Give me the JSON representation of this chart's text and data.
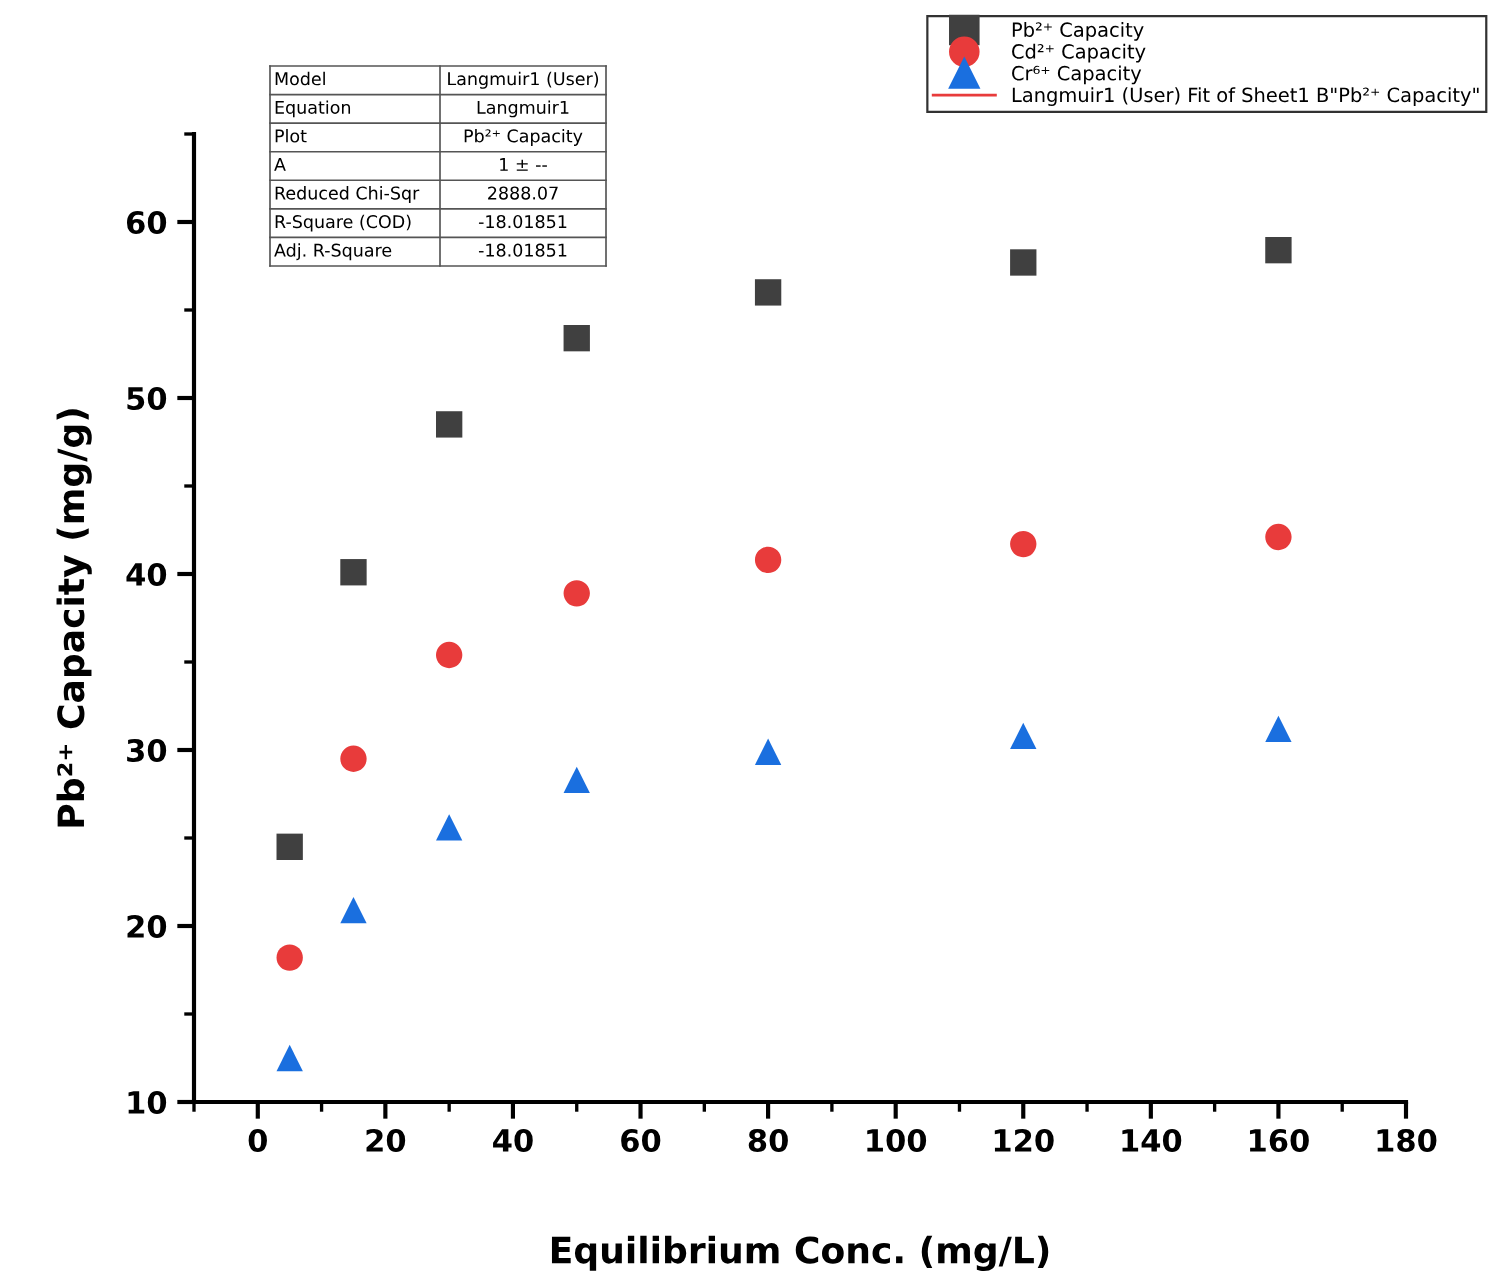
{
  "chart_data": {
    "type": "scatter",
    "xlabel": "Equilibrium Conc. (mg/L)",
    "ylabel": "Pb²⁺ Capacity (mg/g)",
    "x": [
      5,
      15,
      30,
      50,
      80,
      120,
      160
    ],
    "series": [
      {
        "name": "Pb²⁺ Capacity",
        "color": "#404040",
        "marker": "square",
        "values": [
          24.5,
          40.1,
          48.5,
          53.4,
          56.0,
          57.7,
          58.4
        ]
      },
      {
        "name": "Cd²⁺ Capacity",
        "color": "#e83b3b",
        "marker": "circle",
        "values": [
          18.2,
          29.5,
          35.4,
          38.9,
          40.8,
          41.7,
          42.1
        ]
      },
      {
        "name": "Cr⁶⁺ Capacity",
        "color": "#1a6fdf",
        "marker": "triangle",
        "values": [
          12.5,
          20.9,
          25.6,
          28.3,
          29.9,
          30.8,
          31.2
        ]
      },
      {
        "name": "Langmuir1 (User) Fit of Sheet1 B\"Pb²⁺ Capacity\"",
        "type": "line",
        "color": "#e83b3b",
        "line_style": "solid",
        "values": [
          null,
          null,
          null,
          null,
          null,
          null,
          null
        ]
      }
    ],
    "xlim": [
      -10,
      180
    ],
    "xticks": [
      0,
      20,
      40,
      60,
      80,
      100,
      120,
      140,
      160,
      180
    ],
    "ylim": [
      10,
      65
    ],
    "yticks": [
      10,
      20,
      30,
      40,
      50,
      60
    ],
    "grid": false,
    "legend": "top right",
    "annotations": [
      "Model",
      "Langmuir1 (User)",
      "Equation",
      "Langmuir1",
      "Plot",
      "Pb²⁺ Capacity",
      "A",
      "1 ± --",
      "Reduced Chi-Sqr",
      "2888.07",
      "R-Square (COD)",
      "-18.01851",
      "Adj. R-Square",
      "-18.01851"
    ]
  }
}
